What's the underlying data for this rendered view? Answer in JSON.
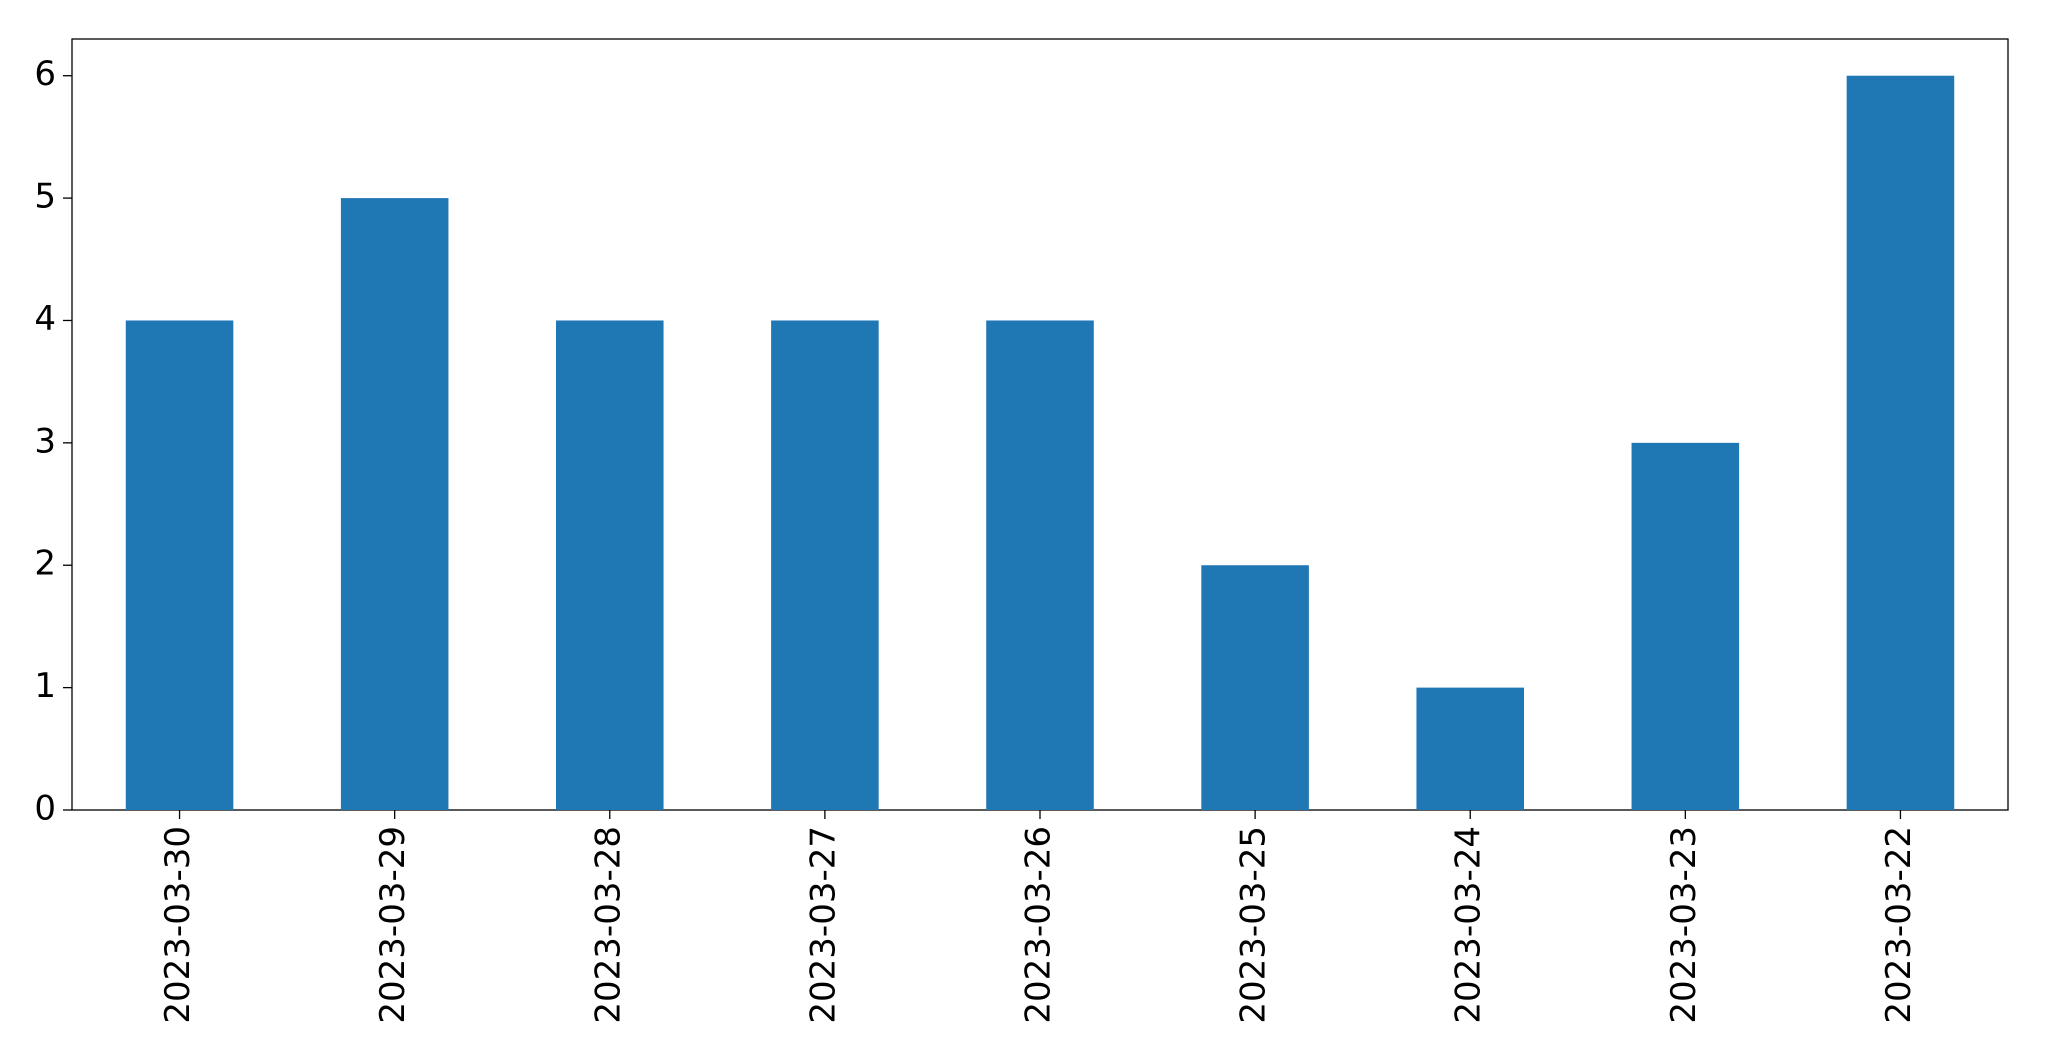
{
  "chart_data": {
    "type": "bar",
    "categories": [
      "2023-03-30",
      "2023-03-29",
      "2023-03-28",
      "2023-03-27",
      "2023-03-26",
      "2023-03-25",
      "2023-03-24",
      "2023-03-23",
      "2023-03-22"
    ],
    "values": [
      4,
      5,
      4,
      4,
      4,
      2,
      1,
      3,
      6
    ],
    "color": "#1f77b4",
    "ylim": [
      0,
      6.3
    ],
    "yticks": [
      0,
      1,
      2,
      3,
      4,
      5,
      6
    ],
    "grid": false
  }
}
